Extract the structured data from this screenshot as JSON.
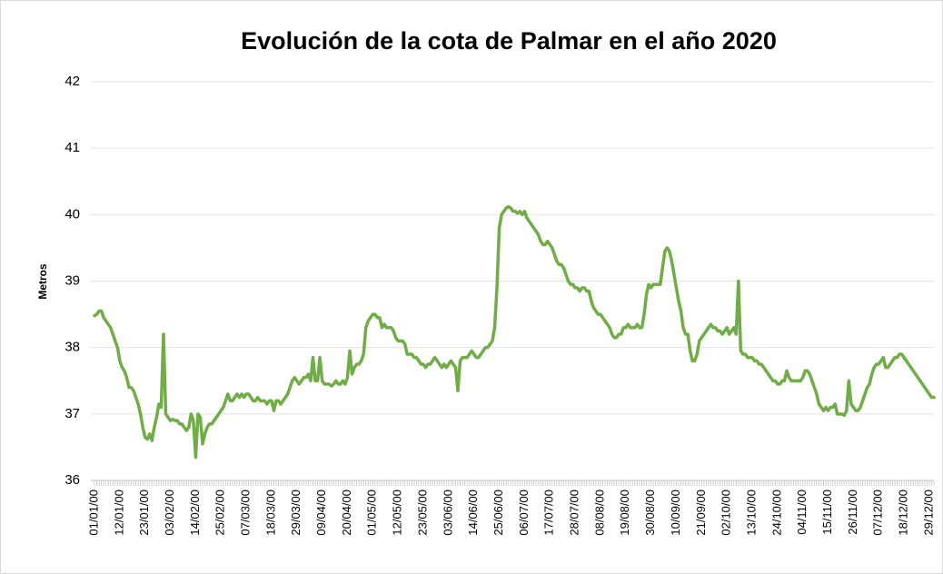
{
  "chart_data": {
    "type": "line",
    "title": "Evolución de la cota de Palmar en el año 2020",
    "y_label": "Metros",
    "categories": [
      "01/01/00",
      null,
      null,
      null,
      null,
      null,
      null,
      null,
      null,
      null,
      null,
      "12/01/00",
      null,
      null,
      null,
      null,
      null,
      null,
      null,
      null,
      null,
      null,
      "23/01/00",
      null,
      null,
      null,
      null,
      null,
      null,
      null,
      null,
      null,
      null,
      "03/02/00",
      null,
      null,
      null,
      null,
      null,
      null,
      null,
      null,
      null,
      null,
      "14/02/00",
      null,
      null,
      null,
      null,
      null,
      null,
      null,
      null,
      null,
      null,
      "25/02/00",
      null,
      null,
      null,
      null,
      null,
      null,
      null,
      null,
      null,
      null,
      "07/03/00",
      null,
      null,
      null,
      null,
      null,
      null,
      null,
      null,
      null,
      null,
      "18/03/00",
      null,
      null,
      null,
      null,
      null,
      null,
      null,
      null,
      null,
      null,
      "29/03/00",
      null,
      null,
      null,
      null,
      null,
      null,
      null,
      null,
      null,
      null,
      "09/04/00",
      null,
      null,
      null,
      null,
      null,
      null,
      null,
      null,
      null,
      null,
      "20/04/00",
      null,
      null,
      null,
      null,
      null,
      null,
      null,
      null,
      null,
      null,
      "01/05/00",
      null,
      null,
      null,
      null,
      null,
      null,
      null,
      null,
      null,
      null,
      "12/05/00",
      null,
      null,
      null,
      null,
      null,
      null,
      null,
      null,
      null,
      null,
      "23/05/00",
      null,
      null,
      null,
      null,
      null,
      null,
      null,
      null,
      null,
      null,
      "03/06/00",
      null,
      null,
      null,
      null,
      null,
      null,
      null,
      null,
      null,
      null,
      "14/06/00",
      null,
      null,
      null,
      null,
      null,
      null,
      null,
      null,
      null,
      null,
      "25/06/00",
      null,
      null,
      null,
      null,
      null,
      null,
      null,
      null,
      null,
      null,
      "06/07/00",
      null,
      null,
      null,
      null,
      null,
      null,
      null,
      null,
      null,
      null,
      "17/07/00",
      null,
      null,
      null,
      null,
      null,
      null,
      null,
      null,
      null,
      null,
      "28/07/00",
      null,
      null,
      null,
      null,
      null,
      null,
      null,
      null,
      null,
      null,
      "08/08/00",
      null,
      null,
      null,
      null,
      null,
      null,
      null,
      null,
      null,
      null,
      "19/08/00",
      null,
      null,
      null,
      null,
      null,
      null,
      null,
      null,
      null,
      null,
      "30/08/00",
      null,
      null,
      null,
      null,
      null,
      null,
      null,
      null,
      null,
      null,
      "10/09/00",
      null,
      null,
      null,
      null,
      null,
      null,
      null,
      null,
      null,
      null,
      "21/09/00",
      null,
      null,
      null,
      null,
      null,
      null,
      null,
      null,
      null,
      null,
      "02/10/00",
      null,
      null,
      null,
      null,
      null,
      null,
      null,
      null,
      null,
      null,
      "13/10/00",
      null,
      null,
      null,
      null,
      null,
      null,
      null,
      null,
      null,
      null,
      "24/10/00",
      null,
      null,
      null,
      null,
      null,
      null,
      null,
      null,
      null,
      null,
      "04/11/00",
      null,
      null,
      null,
      null,
      null,
      null,
      null,
      null,
      null,
      null,
      "15/11/00",
      null,
      null,
      null,
      null,
      null,
      null,
      null,
      null,
      null,
      null,
      "26/11/00",
      null,
      null,
      null,
      null,
      null,
      null,
      null,
      null,
      null,
      null,
      "07/12/00",
      null,
      null,
      null,
      null,
      null,
      null,
      null,
      null,
      null,
      null,
      "18/12/00",
      null,
      null,
      null,
      null,
      null,
      null,
      null,
      null,
      null,
      null,
      "29/12/00",
      null,
      null
    ],
    "values": [
      38.48,
      38.5,
      38.55,
      38.55,
      38.45,
      38.4,
      38.35,
      38.3,
      38.2,
      38.1,
      38.0,
      37.8,
      37.7,
      37.65,
      37.55,
      37.4,
      37.4,
      37.35,
      37.25,
      37.15,
      37.0,
      36.8,
      36.65,
      36.62,
      36.7,
      36.6,
      36.8,
      36.95,
      37.15,
      37.1,
      38.2,
      37.0,
      36.95,
      36.9,
      36.92,
      36.9,
      36.9,
      36.85,
      36.85,
      36.8,
      36.75,
      36.8,
      37.0,
      36.9,
      36.35,
      37.0,
      36.95,
      36.55,
      36.7,
      36.8,
      36.85,
      36.85,
      36.9,
      36.95,
      37.0,
      37.05,
      37.1,
      37.2,
      37.3,
      37.2,
      37.2,
      37.25,
      37.3,
      37.25,
      37.3,
      37.25,
      37.3,
      37.3,
      37.25,
      37.2,
      37.2,
      37.25,
      37.2,
      37.2,
      37.2,
      37.15,
      37.2,
      37.2,
      37.05,
      37.2,
      37.2,
      37.15,
      37.2,
      37.25,
      37.3,
      37.4,
      37.5,
      37.55,
      37.5,
      37.45,
      37.5,
      37.55,
      37.55,
      37.6,
      37.5,
      37.85,
      37.5,
      37.5,
      37.85,
      37.5,
      37.45,
      37.45,
      37.45,
      37.42,
      37.45,
      37.5,
      37.45,
      37.45,
      37.5,
      37.45,
      37.55,
      37.95,
      37.6,
      37.7,
      37.75,
      37.75,
      37.8,
      37.9,
      38.3,
      38.4,
      38.45,
      38.5,
      38.5,
      38.45,
      38.45,
      38.3,
      38.35,
      38.3,
      38.3,
      38.3,
      38.25,
      38.15,
      38.1,
      38.1,
      38.1,
      38.05,
      37.9,
      37.9,
      37.9,
      37.85,
      37.85,
      37.8,
      37.75,
      37.75,
      37.7,
      37.75,
      37.75,
      37.8,
      37.85,
      37.8,
      37.75,
      37.7,
      37.75,
      37.7,
      37.75,
      37.8,
      37.75,
      37.7,
      37.35,
      37.8,
      37.85,
      37.85,
      37.85,
      37.9,
      37.95,
      37.9,
      37.85,
      37.85,
      37.9,
      37.95,
      38.0,
      38.0,
      38.05,
      38.1,
      38.3,
      38.9,
      39.8,
      40.0,
      40.05,
      40.1,
      40.12,
      40.1,
      40.05,
      40.05,
      40.02,
      40.05,
      40.0,
      40.05,
      39.95,
      39.9,
      39.85,
      39.8,
      39.75,
      39.7,
      39.6,
      39.55,
      39.55,
      39.6,
      39.55,
      39.5,
      39.4,
      39.3,
      39.25,
      39.25,
      39.2,
      39.1,
      39.0,
      38.95,
      38.95,
      38.9,
      38.9,
      38.85,
      38.9,
      38.9,
      38.85,
      38.85,
      38.7,
      38.6,
      38.55,
      38.5,
      38.5,
      38.45,
      38.4,
      38.35,
      38.3,
      38.2,
      38.15,
      38.15,
      38.2,
      38.2,
      38.3,
      38.3,
      38.35,
      38.3,
      38.3,
      38.3,
      38.35,
      38.3,
      38.3,
      38.5,
      38.8,
      38.95,
      38.9,
      38.95,
      38.95,
      38.95,
      38.95,
      39.2,
      39.45,
      39.5,
      39.45,
      39.3,
      39.1,
      38.9,
      38.7,
      38.55,
      38.3,
      38.2,
      38.2,
      37.95,
      37.8,
      37.8,
      37.9,
      38.1,
      38.15,
      38.2,
      38.25,
      38.3,
      38.35,
      38.3,
      38.3,
      38.25,
      38.25,
      38.2,
      38.25,
      38.3,
      38.2,
      38.25,
      38.3,
      38.2,
      39.0,
      37.95,
      37.9,
      37.9,
      37.85,
      37.85,
      37.85,
      37.8,
      37.8,
      37.75,
      37.75,
      37.7,
      37.65,
      37.6,
      37.55,
      37.5,
      37.5,
      37.45,
      37.45,
      37.5,
      37.5,
      37.65,
      37.55,
      37.5,
      37.5,
      37.5,
      37.5,
      37.5,
      37.55,
      37.65,
      37.65,
      37.6,
      37.5,
      37.4,
      37.3,
      37.15,
      37.1,
      37.05,
      37.1,
      37.05,
      37.1,
      37.1,
      37.15,
      37.0,
      37.0,
      37.0,
      36.98,
      37.05,
      37.5,
      37.15,
      37.1,
      37.05,
      37.05,
      37.1,
      37.2,
      37.3,
      37.4,
      37.45,
      37.6,
      37.7,
      37.75,
      37.75,
      37.8,
      37.85,
      37.7,
      37.7,
      37.75,
      37.8,
      37.85,
      37.85,
      37.9,
      37.9,
      37.85,
      37.8,
      37.75,
      37.7,
      37.65,
      37.6,
      37.55,
      37.5,
      37.45,
      37.4,
      37.35,
      37.3,
      37.25,
      37.25
    ],
    "color": "#70ad47",
    "ylim": [
      36,
      42
    ],
    "yticks": [
      36,
      37,
      38,
      39,
      40,
      41,
      42
    ],
    "grid": true
  }
}
